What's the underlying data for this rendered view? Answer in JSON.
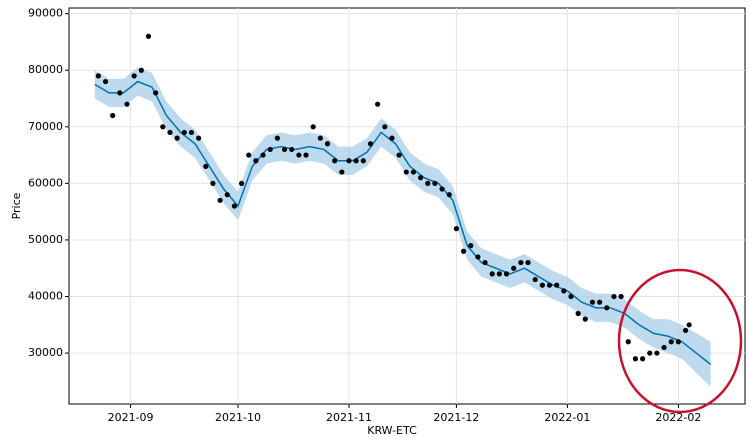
{
  "chart_data": {
    "type": "line",
    "x_label": "KRW-ETC",
    "y_label": "Price",
    "xlim": [
      13.8,
      202.6
    ],
    "ylim": [
      21000,
      91000
    ],
    "xticks": [
      {
        "value": 31,
        "label": "2021-09"
      },
      {
        "value": 61,
        "label": "2021-10"
      },
      {
        "value": 92,
        "label": "2021-11"
      },
      {
        "value": 122,
        "label": "2021-12"
      },
      {
        "value": 153,
        "label": "2022-01"
      },
      {
        "value": 184,
        "label": "2022-02"
      }
    ],
    "yticks": [
      30000,
      40000,
      50000,
      60000,
      70000,
      80000,
      90000
    ],
    "grid": true,
    "series": [
      {
        "style": "points",
        "color": "#000000",
        "x": [
          22,
          24,
          26,
          28,
          30,
          32,
          34,
          36,
          38,
          40,
          42,
          44,
          46,
          48,
          50,
          52,
          54,
          56,
          58,
          60,
          62,
          64,
          66,
          68,
          70,
          72,
          74,
          76,
          78,
          80,
          82,
          84,
          86,
          88,
          90,
          92,
          94,
          96,
          98,
          100,
          102,
          104,
          106,
          108,
          110,
          112,
          114,
          116,
          118,
          120,
          122,
          124,
          126,
          128,
          130,
          132,
          134,
          136,
          138,
          140,
          142,
          144,
          146,
          148,
          150,
          152,
          154,
          156,
          158,
          160,
          162,
          164,
          166,
          168,
          170,
          172,
          174,
          176,
          178,
          180,
          182,
          184,
          186,
          187
        ],
        "values": [
          79000,
          78000,
          72000,
          76000,
          74000,
          79000,
          80000,
          86000,
          76000,
          70000,
          69000,
          68000,
          69000,
          69000,
          68000,
          63000,
          60000,
          57000,
          58000,
          56000,
          60000,
          65000,
          64000,
          65000,
          66000,
          68000,
          66000,
          66000,
          65000,
          65000,
          70000,
          68000,
          67000,
          64000,
          62000,
          64000,
          64000,
          64000,
          67000,
          74000,
          70000,
          68000,
          65000,
          62000,
          62000,
          61000,
          60000,
          60000,
          59000,
          58000,
          52000,
          48000,
          49000,
          47000,
          46000,
          44000,
          44000,
          44000,
          45000,
          46000,
          46000,
          43000,
          42000,
          42000,
          42000,
          41000,
          40000,
          37000,
          36000,
          39000,
          39000,
          38000,
          40000,
          40000,
          32000,
          29000,
          29000,
          30000,
          30000,
          31000,
          32000,
          32000,
          34000,
          35000
        ]
      },
      {
        "style": "forecast",
        "color": "#0072b2",
        "band_color": "#a8cde8",
        "x": [
          21,
          25,
          29,
          33,
          37,
          41,
          45,
          49,
          53,
          57,
          61,
          65,
          69,
          73,
          77,
          81,
          85,
          89,
          93,
          97,
          101,
          105,
          109,
          113,
          117,
          121,
          125,
          129,
          133,
          137,
          141,
          145,
          149,
          153,
          157,
          161,
          165,
          169,
          173,
          177,
          181,
          185,
          189,
          193
        ],
        "values": [
          77500,
          76000,
          76000,
          78000,
          77000,
          72000,
          69000,
          67000,
          63000,
          59000,
          56000,
          63000,
          66000,
          66500,
          66000,
          66500,
          66000,
          64000,
          64000,
          65500,
          69000,
          67000,
          63000,
          61000,
          60000,
          57000,
          49000,
          46000,
          45000,
          44000,
          45000,
          43500,
          42000,
          41000,
          39000,
          38000,
          38000,
          37000,
          35000,
          33500,
          33000,
          32000,
          30000,
          28000
        ],
        "lower": [
          75000,
          73500,
          73500,
          75500,
          74500,
          69500,
          66500,
          64500,
          60500,
          56500,
          53500,
          60500,
          63500,
          64000,
          63500,
          64000,
          63500,
          61500,
          61500,
          63000,
          66500,
          64500,
          60500,
          58500,
          57500,
          54500,
          46500,
          43500,
          42500,
          41500,
          42500,
          41000,
          39500,
          38500,
          36500,
          35500,
          35500,
          34500,
          32500,
          31000,
          30000,
          29000,
          26500,
          24000
        ],
        "upper": [
          80000,
          78500,
          78500,
          80500,
          79500,
          74500,
          71500,
          69500,
          65500,
          61500,
          58500,
          65500,
          68500,
          69000,
          68500,
          69000,
          68500,
          66500,
          66500,
          68000,
          71500,
          69500,
          65500,
          63500,
          62500,
          59500,
          51500,
          48500,
          47500,
          46500,
          47500,
          46000,
          44500,
          43500,
          41500,
          40500,
          40500,
          39500,
          37500,
          36000,
          36000,
          35000,
          33500,
          32000
        ]
      }
    ]
  }
}
